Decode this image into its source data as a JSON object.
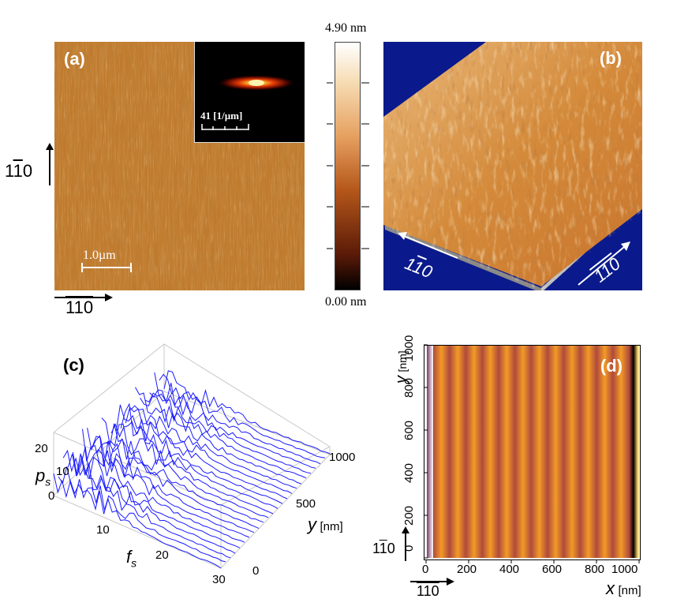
{
  "panel_a": {
    "label": "(a)",
    "scale_bar": "1.0µm",
    "inset_scale": "41 [1/µm]",
    "axis_vertical": "110",
    "axis_horizontal": "110",
    "colors": {
      "base": "#c07a2c",
      "dark": "#8a4a14",
      "light": "#e8b070"
    }
  },
  "colorbar": {
    "max_label": "4.90 nm",
    "min_label": "0.00 nm",
    "stops": [
      "#000000",
      "#5a1a08",
      "#b4561a",
      "#e6a060",
      "#f6dcb4",
      "#ffffff"
    ]
  },
  "panel_b": {
    "label": "(b)",
    "axis_left": "110",
    "axis_right": "110",
    "background": "#0a1a8c"
  },
  "panel_c": {
    "label": "(c)",
    "y_axis_label_main": "p",
    "y_axis_label_sub": "s",
    "x_axis_label_main": "f",
    "x_axis_label_sub": "s",
    "depth_axis_label": "y",
    "depth_axis_unit": "[nm]",
    "p_ticks": [
      "20",
      "10",
      "0"
    ],
    "f_ticks": [
      "10",
      "20",
      "30"
    ],
    "y_ticks": [
      "1000",
      "500",
      "0"
    ],
    "line_color": "#1a1aff"
  },
  "panel_d": {
    "label": "(d)",
    "x_axis_label": "x",
    "x_unit": "[nm]",
    "y_axis_label": "y",
    "y_unit": "[nm]",
    "x_ticks": [
      "0",
      "200",
      "400",
      "600",
      "800",
      "1000"
    ],
    "y_ticks": [
      "0",
      "200",
      "400",
      "600",
      "800",
      "1000"
    ],
    "axis_vertical": "110",
    "axis_horizontal": "110"
  },
  "chart_data": {
    "type": "heatmap",
    "title": "(d)",
    "xlabel": "x [nm]",
    "ylabel": "y [nm]",
    "xlim": [
      0,
      1000
    ],
    "ylim": [
      0,
      1000
    ],
    "x_ticks": [
      0,
      200,
      400,
      600,
      800,
      1000
    ],
    "y_ticks": [
      0,
      200,
      400,
      600,
      800,
      1000
    ],
    "stripe_count": 12
  }
}
